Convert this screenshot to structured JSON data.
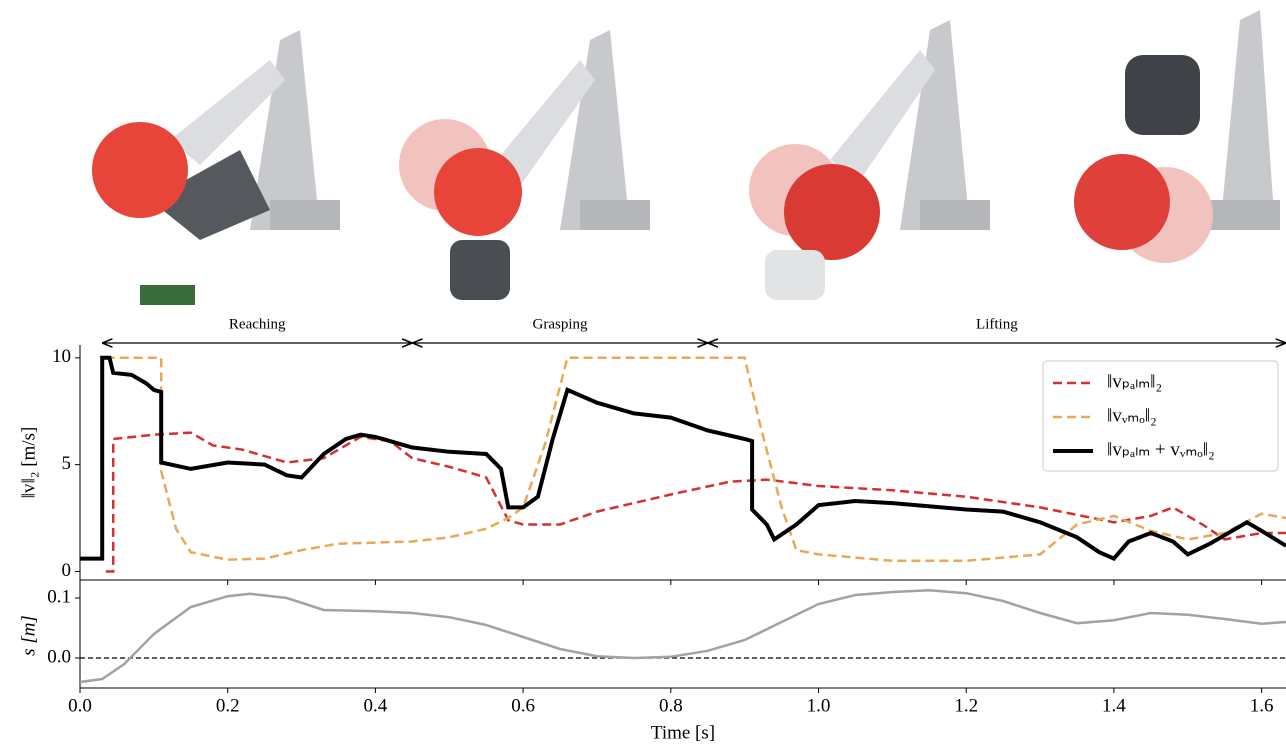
{
  "chart_data": [
    {
      "type": "line",
      "ylabel": "‖v‖₂ [m/s]",
      "xlim": [
        0,
        1.633
      ],
      "ylim": [
        -0.4,
        10.6
      ],
      "yticks": [
        0,
        5,
        10
      ],
      "legend": "upper right",
      "phases": [
        {
          "label": "Reaching",
          "start": 0.03,
          "end": 0.45
        },
        {
          "label": "Grasping",
          "start": 0.45,
          "end": 0.85
        },
        {
          "label": "Lifting",
          "start": 0.85,
          "end": 1.633
        }
      ],
      "series": [
        {
          "name": "‖vₚₐₗₘ‖₂",
          "color": "#d62f2f",
          "dash": true,
          "x": [
            0.035,
            0.045,
            0.045,
            0.1,
            0.15,
            0.18,
            0.22,
            0.28,
            0.33,
            0.38,
            0.42,
            0.45,
            0.5,
            0.55,
            0.58,
            0.6,
            0.65,
            0.7,
            0.8,
            0.88,
            0.93,
            1.0,
            1.1,
            1.2,
            1.3,
            1.4,
            1.45,
            1.48,
            1.52,
            1.55,
            1.6,
            1.633
          ],
          "values": [
            0,
            0,
            6.2,
            6.4,
            6.5,
            5.9,
            5.7,
            5.1,
            5.3,
            6.3,
            6.1,
            5.3,
            4.9,
            4.4,
            2.4,
            2.2,
            2.2,
            2.8,
            3.6,
            4.2,
            4.3,
            4.0,
            3.8,
            3.5,
            3.0,
            2.3,
            2.6,
            3.0,
            2.2,
            1.5,
            1.8,
            1.8
          ]
        },
        {
          "name": "‖vᵥₘₒ‖₂",
          "color": "#e9a854",
          "dash": true,
          "x": [
            0.035,
            0.11,
            0.11,
            0.13,
            0.15,
            0.2,
            0.25,
            0.3,
            0.35,
            0.45,
            0.5,
            0.55,
            0.58,
            0.6,
            0.63,
            0.66,
            0.9,
            0.92,
            0.95,
            0.97,
            1.0,
            1.1,
            1.2,
            1.3,
            1.35,
            1.4,
            1.45,
            1.5,
            1.55,
            1.6,
            1.633
          ],
          "values": [
            10,
            10,
            4.7,
            2,
            0.9,
            0.55,
            0.6,
            1.0,
            1.3,
            1.4,
            1.6,
            2.0,
            2.5,
            3,
            6,
            10,
            10,
            7,
            3,
            1,
            0.8,
            0.5,
            0.5,
            0.8,
            2.2,
            2.6,
            1.9,
            1.5,
            1.8,
            2.7,
            2.5
          ]
        },
        {
          "name": "‖vₚₐₗₘ + vᵥₘₒ‖₂",
          "color": "#000000",
          "dash": false,
          "x": [
            0,
            0.03,
            0.03,
            0.04,
            0.045,
            0.07,
            0.09,
            0.1,
            0.11,
            0.11,
            0.15,
            0.2,
            0.25,
            0.28,
            0.3,
            0.33,
            0.36,
            0.38,
            0.4,
            0.45,
            0.5,
            0.55,
            0.57,
            0.58,
            0.6,
            0.62,
            0.64,
            0.66,
            0.7,
            0.75,
            0.8,
            0.85,
            0.9,
            0.91,
            0.91,
            0.93,
            0.94,
            0.97,
            1.0,
            1.05,
            1.1,
            1.2,
            1.25,
            1.3,
            1.35,
            1.38,
            1.4,
            1.42,
            1.45,
            1.48,
            1.5,
            1.53,
            1.58,
            1.6,
            1.633
          ],
          "values": [
            0.6,
            0.6,
            10,
            10,
            9.3,
            9.2,
            8.8,
            8.5,
            8.4,
            5.1,
            4.8,
            5.1,
            5.0,
            4.5,
            4.4,
            5.5,
            6.2,
            6.4,
            6.3,
            5.8,
            5.6,
            5.5,
            4.8,
            3.0,
            3.0,
            3.5,
            6.2,
            8.5,
            7.9,
            7.4,
            7.2,
            6.6,
            6.2,
            6.1,
            2.9,
            2.2,
            1.5,
            2.2,
            3.1,
            3.3,
            3.2,
            2.9,
            2.8,
            2.3,
            1.6,
            0.9,
            0.6,
            1.4,
            1.8,
            1.4,
            0.8,
            1.3,
            2.3,
            1.9,
            1.2
          ]
        }
      ]
    },
    {
      "type": "line",
      "xlabel": "Time [s]",
      "ylabel": "s [m]",
      "xlim": [
        0,
        1.633
      ],
      "ylim": [
        -0.05,
        0.125
      ],
      "xticks": [
        {
          "value": 0,
          "label": "0.0"
        },
        0.2,
        0.4,
        0.6,
        0.8,
        {
          "value": 1,
          "label": "1.0"
        },
        1.2,
        1.4,
        1.6
      ],
      "yticks": [
        {
          "value": 0,
          "label": "0.0"
        },
        0.1
      ],
      "hline": 0,
      "series": [
        {
          "color": "#9ea3a8",
          "dash": false,
          "x": [
            0,
            0.03,
            0.06,
            0.1,
            0.15,
            0.2,
            0.23,
            0.28,
            0.33,
            0.4,
            0.45,
            0.5,
            0.55,
            0.6,
            0.65,
            0.7,
            0.75,
            0.8,
            0.85,
            0.9,
            0.95,
            1.0,
            1.05,
            1.1,
            1.15,
            1.2,
            1.25,
            1.3,
            1.35,
            1.4,
            1.45,
            1.5,
            1.55,
            1.6,
            1.633
          ],
          "values": [
            -0.04,
            -0.035,
            -0.01,
            0.04,
            0.085,
            0.103,
            0.107,
            0.1,
            0.08,
            0.078,
            0.075,
            0.068,
            0.055,
            0.035,
            0.015,
            0.003,
            0,
            0.002,
            0.012,
            0.03,
            0.06,
            0.09,
            0.105,
            0.11,
            0.113,
            0.108,
            0.095,
            0.075,
            0.058,
            0.063,
            0.075,
            0.072,
            0.065,
            0.057,
            0.06
          ]
        }
      ]
    }
  ]
}
